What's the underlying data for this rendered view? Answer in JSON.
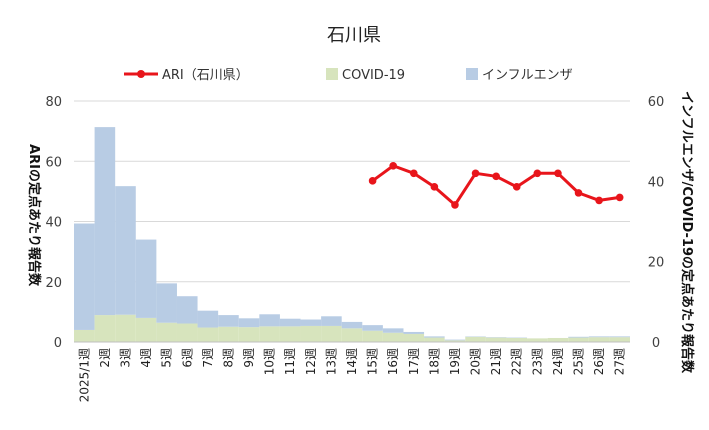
{
  "chart_data": {
    "type": "bar+line",
    "title": "石川県",
    "categories": [
      "2025/1週",
      "2週",
      "3週",
      "4週",
      "5週",
      "6週",
      "7週",
      "8週",
      "9週",
      "10週",
      "11週",
      "12週",
      "13週",
      "14週",
      "15週",
      "16週",
      "17週",
      "18週",
      "19週",
      "20週",
      "21週",
      "22週",
      "23週",
      "24週",
      "25週",
      "26週",
      "27週"
    ],
    "bar_series": [
      {
        "name": "COVID-19",
        "color": "#d7e4bd",
        "values": [
          3.0,
          6.7,
          6.8,
          6.0,
          4.8,
          4.6,
          3.6,
          3.8,
          3.7,
          3.9,
          3.9,
          4.0,
          4.0,
          3.4,
          2.8,
          2.3,
          2.0,
          1.1,
          0.4,
          1.3,
          1.1,
          1.0,
          0.9,
          1.0,
          1.1,
          1.2,
          1.2
        ]
      },
      {
        "name": "インフルエンザ",
        "color": "#b8cce4",
        "values": [
          26.5,
          46.8,
          32.0,
          19.5,
          9.8,
          6.8,
          4.2,
          2.9,
          2.2,
          3.0,
          1.9,
          1.6,
          2.4,
          1.6,
          1.4,
          1.1,
          0.5,
          0.3,
          0.2,
          0.1,
          0.1,
          0.1,
          0.0,
          0.0,
          0.2,
          0.2,
          0.2
        ]
      }
    ],
    "line_series": [
      {
        "name": "ARI（石川県）",
        "color": "#e8151b",
        "start_index": 14,
        "values": [
          53.5,
          58.5,
          56.0,
          51.5,
          45.5,
          56.0,
          55.0,
          51.5,
          56.0,
          56.0,
          49.5,
          47.0,
          48.0
        ]
      }
    ],
    "y_left": {
      "label": "ARIの定点あたり報告数",
      "min": 0,
      "max": 80,
      "ticks": [
        0,
        20,
        40,
        60,
        80
      ]
    },
    "y_right": {
      "label": "インフルエンザ/COVID-19の定点あたり報告数",
      "min": 0,
      "max": 60,
      "ticks": [
        0,
        20,
        40,
        60
      ]
    },
    "legend": {
      "position": "top"
    }
  }
}
